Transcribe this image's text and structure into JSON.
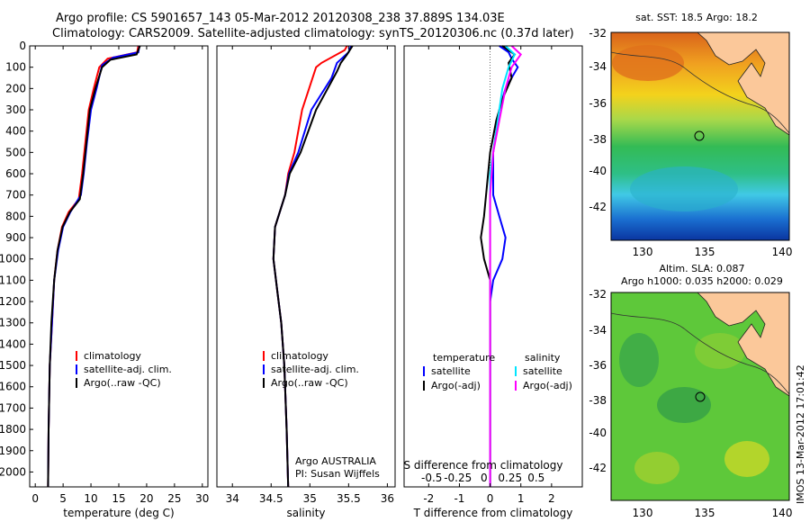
{
  "titles": {
    "line1": "Argo profile: CS 5901657_143 05-Mar-2012 20120308_238 37.889S 134.03E",
    "line2": "Climatology: CARS2009. Satellite-adjusted climatology: synTS_20120306.nc (0.37d later)"
  },
  "colors": {
    "climatology": "#ff0000",
    "satellite": "#0000ff",
    "argo": "#000000",
    "sat_s": "#00e5ff",
    "argo_s": "#ff00ff"
  },
  "chart_data": [
    {
      "type": "line",
      "xlabel": "temperature (deg C)",
      "ylabel": "",
      "xlim": [
        -1,
        31
      ],
      "ylim": [
        2070,
        0
      ],
      "xticks": [
        0,
        5,
        10,
        15,
        20,
        25,
        30
      ],
      "yticks": [
        0,
        100,
        200,
        300,
        400,
        500,
        600,
        700,
        800,
        900,
        1000,
        1100,
        1200,
        1300,
        1400,
        1500,
        1600,
        1700,
        1800,
        1900,
        2000
      ],
      "legend": [
        "climatology",
        "satellite-adj. clim.",
        "Argo(..raw -QC)"
      ],
      "series": [
        {
          "name": "climatology",
          "color": "#ff0000",
          "points": [
            [
              18.5,
              0
            ],
            [
              18.3,
              30
            ],
            [
              13,
              60
            ],
            [
              11.5,
              100
            ],
            [
              10.5,
              200
            ],
            [
              9.6,
              300
            ],
            [
              9,
              450
            ],
            [
              8.4,
              600
            ],
            [
              7.8,
              720
            ],
            [
              6,
              780
            ],
            [
              4.8,
              850
            ],
            [
              4,
              960
            ],
            [
              3.4,
              1100
            ],
            [
              3,
              1300
            ],
            [
              2.6,
              1500
            ],
            [
              2.4,
              1800
            ],
            [
              2.3,
              2070
            ]
          ]
        },
        {
          "name": "satellite-adj. clim.",
          "color": "#0000ff",
          "points": [
            [
              18.7,
              0
            ],
            [
              18.5,
              30
            ],
            [
              14,
              55
            ],
            [
              12,
              90
            ],
            [
              11,
              200
            ],
            [
              10,
              300
            ],
            [
              9.3,
              450
            ],
            [
              8.7,
              600
            ],
            [
              8.2,
              700
            ],
            [
              6.3,
              780
            ],
            [
              5,
              850
            ],
            [
              4.1,
              960
            ],
            [
              3.4,
              1100
            ],
            [
              3,
              1300
            ],
            [
              2.6,
              1500
            ],
            [
              2.4,
              1800
            ],
            [
              2.3,
              2070
            ]
          ]
        },
        {
          "name": "Argo(..raw -QC)",
          "color": "#000000",
          "points": [
            [
              18.8,
              0
            ],
            [
              18.2,
              40
            ],
            [
              13.5,
              65
            ],
            [
              12,
              100
            ],
            [
              10.8,
              200
            ],
            [
              9.8,
              300
            ],
            [
              9.2,
              450
            ],
            [
              8.6,
              600
            ],
            [
              8,
              720
            ],
            [
              6.2,
              780
            ],
            [
              4.9,
              850
            ],
            [
              4,
              960
            ],
            [
              3.4,
              1100
            ],
            [
              2.9,
              1300
            ],
            [
              2.6,
              1500
            ],
            [
              2.4,
              1800
            ],
            [
              2.3,
              2070
            ]
          ]
        }
      ]
    },
    {
      "type": "line",
      "xlabel": "salinity",
      "xlim": [
        33.8,
        36.1
      ],
      "ylim": [
        2070,
        0
      ],
      "xticks": [
        34,
        34.5,
        35,
        35.5,
        36
      ],
      "xticklabels": [
        "34",
        "34.5",
        "35",
        "35.5",
        "36"
      ],
      "legend": [
        "climatology",
        "satellite-adj. clim.",
        "Argo(..raw -QC)"
      ],
      "annotation": [
        "Argo AUSTRALIA",
        "PI: Susan Wijffels"
      ],
      "series": [
        {
          "name": "climatology",
          "color": "#ff0000",
          "points": [
            [
              35.48,
              0
            ],
            [
              35.45,
              20
            ],
            [
              35.15,
              80
            ],
            [
              35.08,
              100
            ],
            [
              34.9,
              300
            ],
            [
              34.8,
              500
            ],
            [
              34.72,
              600
            ],
            [
              34.68,
              700
            ],
            [
              34.55,
              850
            ],
            [
              34.53,
              1000
            ],
            [
              34.58,
              1150
            ],
            [
              34.63,
              1300
            ],
            [
              34.67,
              1500
            ],
            [
              34.7,
              1800
            ],
            [
              34.72,
              2070
            ]
          ]
        },
        {
          "name": "satellite-adj. clim.",
          "color": "#0000ff",
          "points": [
            [
              35.53,
              0
            ],
            [
              35.5,
              30
            ],
            [
              35.35,
              80
            ],
            [
              35.28,
              150
            ],
            [
              35.02,
              300
            ],
            [
              34.85,
              500
            ],
            [
              34.73,
              600
            ],
            [
              34.68,
              700
            ],
            [
              34.55,
              850
            ],
            [
              34.53,
              1000
            ],
            [
              34.58,
              1150
            ],
            [
              34.63,
              1300
            ],
            [
              34.67,
              1500
            ],
            [
              34.7,
              1800
            ],
            [
              34.72,
              2070
            ]
          ]
        },
        {
          "name": "Argo(..raw -QC)",
          "color": "#000000",
          "points": [
            [
              35.55,
              0
            ],
            [
              35.48,
              40
            ],
            [
              35.4,
              80
            ],
            [
              35.35,
              120
            ],
            [
              35.08,
              300
            ],
            [
              34.88,
              500
            ],
            [
              34.74,
              600
            ],
            [
              34.68,
              700
            ],
            [
              34.55,
              850
            ],
            [
              34.53,
              1000
            ],
            [
              34.58,
              1150
            ],
            [
              34.63,
              1300
            ],
            [
              34.67,
              1500
            ],
            [
              34.7,
              1800
            ],
            [
              34.72,
              2070
            ]
          ]
        }
      ]
    },
    {
      "type": "line",
      "xlabel": "T difference from climatology",
      "xlabel_top": "S difference from climatology",
      "xlim": [
        -2.8,
        3
      ],
      "ylim": [
        2070,
        0
      ],
      "xticks": [
        -2,
        -1,
        0,
        1,
        2
      ],
      "xticks_top": [
        -0.5,
        -0.25,
        0,
        0.25,
        0.5
      ],
      "xticks_top_labels": [
        "-0.5",
        "-0.25",
        "0",
        "0.25",
        "0.5"
      ],
      "legend_titles": [
        "temperature",
        "salinity"
      ],
      "legend": [
        "satellite",
        "Argo(-adj)",
        "satellite",
        "Argo(-adj)"
      ],
      "series": [
        {
          "name": "satellite",
          "color": "#0000ff",
          "points": [
            [
              0.3,
              0
            ],
            [
              0.6,
              30
            ],
            [
              0.7,
              60
            ],
            [
              0.9,
              100
            ],
            [
              0.5,
              200
            ],
            [
              0.3,
              300
            ],
            [
              0.1,
              500
            ],
            [
              0.1,
              700
            ],
            [
              0.3,
              800
            ],
            [
              0.5,
              900
            ],
            [
              0.4,
              1000
            ],
            [
              0.1,
              1100
            ],
            [
              0,
              1200
            ],
            [
              0,
              2070
            ]
          ]
        },
        {
          "name": "Argo(-adj)",
          "color": "#000000",
          "points": [
            [
              0.4,
              0
            ],
            [
              0.8,
              40
            ],
            [
              0.6,
              80
            ],
            [
              0.7,
              150
            ],
            [
              0.4,
              250
            ],
            [
              0.2,
              350
            ],
            [
              0,
              500
            ],
            [
              -0.2,
              800
            ],
            [
              -0.3,
              900
            ],
            [
              -0.2,
              1000
            ],
            [
              0,
              1100
            ],
            [
              0,
              1200
            ],
            [
              0,
              2070
            ]
          ]
        },
        {
          "name": "satellite",
          "color": "#00e5ff",
          "points": [
            [
              0.5,
              0
            ],
            [
              0.8,
              40
            ],
            [
              0.6,
              100
            ],
            [
              0.4,
              200
            ],
            [
              0.2,
              400
            ],
            [
              0,
              600
            ],
            [
              0,
              900
            ],
            [
              0,
              2070
            ]
          ]
        },
        {
          "name": "Argo(-adj)",
          "color": "#ff00ff",
          "points": [
            [
              0.7,
              0
            ],
            [
              1,
              40
            ],
            [
              0.7,
              100
            ],
            [
              0.5,
              200
            ],
            [
              0.3,
              350
            ],
            [
              0.1,
              500
            ],
            [
              0,
              700
            ],
            [
              0,
              2070
            ]
          ]
        }
      ]
    }
  ],
  "maps": {
    "sst": {
      "title": "sat. SST: 18.5 Argo: 18.2",
      "xticks": [
        "130",
        "135",
        "140"
      ],
      "yticks": [
        "-32",
        "-34",
        "-36",
        "-38",
        "-40",
        "-42"
      ]
    },
    "sla": {
      "title1": "Altim. SLA: 0.087",
      "title2": "Argo h1000: 0.035 h2000: 0.029",
      "xticks": [
        "130",
        "135",
        "140"
      ],
      "yticks": [
        "-32",
        "-34",
        "-36",
        "-38",
        "-40",
        "-42"
      ]
    }
  },
  "stamp": "IMOS 13-Mar-2012 17:01:42"
}
